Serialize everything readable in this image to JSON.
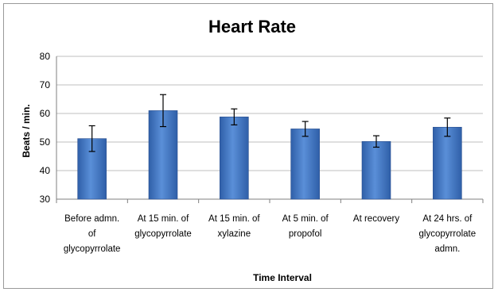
{
  "chart_data": {
    "type": "bar",
    "title": "Heart Rate",
    "xlabel": "Time Interval",
    "ylabel": "Beats / min.",
    "ylim": [
      30,
      80
    ],
    "yticks": [
      30,
      40,
      50,
      60,
      70,
      80
    ],
    "grid": true,
    "categories": [
      [
        "Before admn.",
        "of",
        "glycopyrrolate"
      ],
      [
        "At 15 min. of",
        "glycopyrrolate"
      ],
      [
        "At 15 min. of",
        "xylazine"
      ],
      [
        "At 5 min. of",
        "propofol"
      ],
      [
        "At recovery"
      ],
      [
        "At 24 hrs. of",
        "glycopyrrolate",
        "admn."
      ]
    ],
    "values": [
      51.2,
      61.0,
      58.8,
      54.6,
      50.2,
      55.2
    ],
    "error": [
      4.5,
      5.6,
      2.8,
      2.6,
      2.0,
      3.2
    ],
    "colors": {
      "bar_top": "#5a8fd8",
      "bar_mid": "#4a7cc8",
      "bar_bottom": "#2f5fa8",
      "grid": "#bfbfbf",
      "axis": "#7f7f7f"
    }
  }
}
